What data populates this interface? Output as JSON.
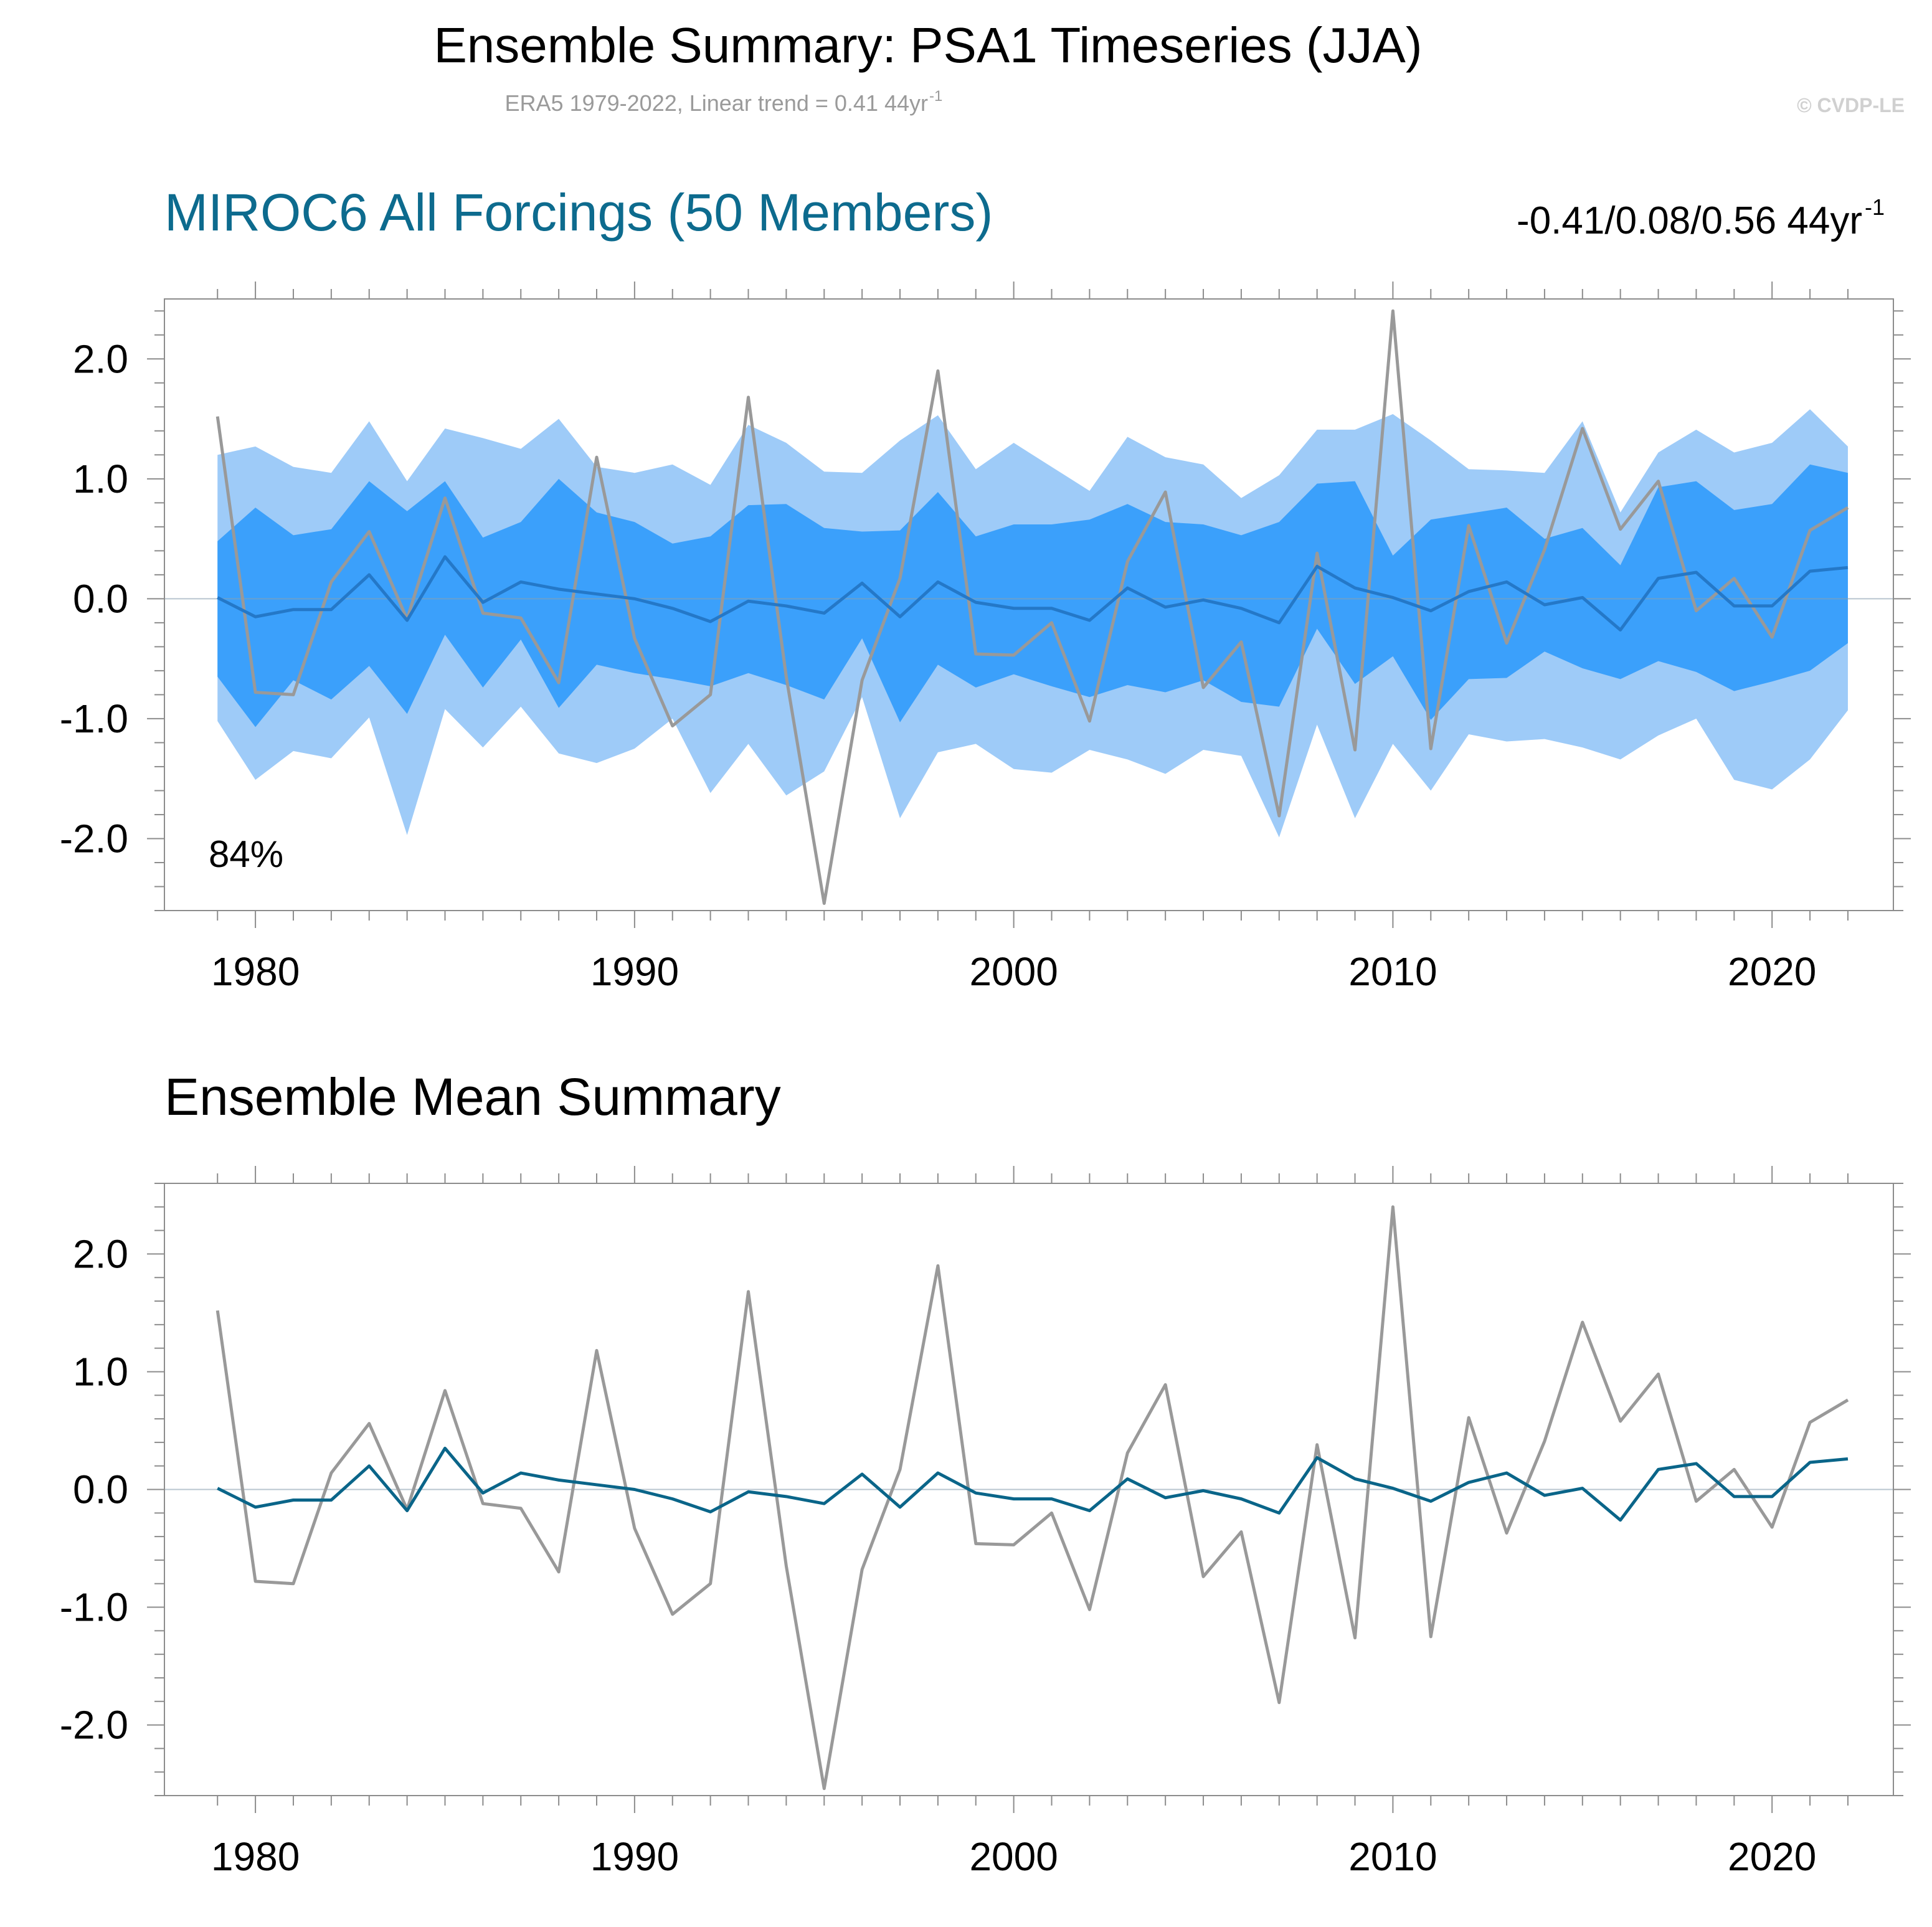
{
  "title": "Ensemble Summary: PSA1 Timeseries (JJA)",
  "subtitle_main": "ERA5 1979-2022, Linear trend = 0.41 44yr",
  "subtitle_sup": "-1",
  "copyright": "© CVDP-LE",
  "colors": {
    "outer_band": "#9ecbf8",
    "inner_band": "#3ba0fb",
    "ens_mean_top": "#2478c8",
    "ens_mean_bottom": "#0a6589",
    "obs": "#999999",
    "title_blue": "#0d6b8e"
  },
  "chart_data": [
    {
      "type": "area",
      "title": "MIROC6 All Forcings (50 Members)",
      "trend_label": "-0.41/0.08/0.56 44yr",
      "trend_sup": "-1",
      "annotation": "84%",
      "ylim": [
        -2.6,
        2.5
      ],
      "xlim": [
        1979,
        2022
      ],
      "yticks": [
        "2.0",
        "1.0",
        "0.0",
        "-1.0",
        "-2.0"
      ],
      "ytick_values": [
        2,
        1,
        0,
        -1,
        -2
      ],
      "xticks": [
        "1980",
        "1990",
        "2000",
        "2010",
        "2020"
      ],
      "xtick_values": [
        1980,
        1990,
        2000,
        2010,
        2020
      ],
      "x": [
        1979,
        1980,
        1981,
        1982,
        1983,
        1984,
        1985,
        1986,
        1987,
        1988,
        1989,
        1990,
        1991,
        1992,
        1993,
        1994,
        1995,
        1996,
        1997,
        1998,
        1999,
        2000,
        2001,
        2002,
        2003,
        2004,
        2005,
        2006,
        2007,
        2008,
        2009,
        2010,
        2011,
        2012,
        2013,
        2014,
        2015,
        2016,
        2017,
        2018,
        2019,
        2020,
        2021,
        2022
      ],
      "series": [
        {
          "name": "",
          "role": "outer_upper",
          "values": [
            1.2,
            1.27,
            1.1,
            1.05,
            1.48,
            0.98,
            1.42,
            1.34,
            1.25,
            1.5,
            1.1,
            1.05,
            1.12,
            0.95,
            1.45,
            1.3,
            1.06,
            1.05,
            1.32,
            1.53,
            1.08,
            1.3,
            1.1,
            0.9,
            1.35,
            1.18,
            1.12,
            0.84,
            1.03,
            1.41,
            1.41,
            1.54,
            1.32,
            1.08,
            1.07,
            1.05,
            1.48,
            0.72,
            1.22,
            1.41,
            1.22,
            1.3,
            1.58,
            1.27
          ]
        },
        {
          "name": "",
          "role": "outer_lower",
          "values": [
            -1.02,
            -1.51,
            -1.27,
            -1.33,
            -0.99,
            -1.97,
            -0.92,
            -1.24,
            -0.9,
            -1.29,
            -1.37,
            -1.25,
            -1.0,
            -1.62,
            -1.21,
            -1.64,
            -1.44,
            -0.82,
            -1.83,
            -1.28,
            -1.21,
            -1.42,
            -1.45,
            -1.26,
            -1.34,
            -1.46,
            -1.26,
            -1.31,
            -1.99,
            -1.05,
            -1.83,
            -1.21,
            -1.6,
            -1.13,
            -1.19,
            -1.17,
            -1.24,
            -1.34,
            -1.14,
            -1.0,
            -1.51,
            -1.59,
            -1.34,
            -0.93
          ]
        },
        {
          "name": "",
          "role": "inner_upper",
          "values": [
            0.48,
            0.76,
            0.53,
            0.58,
            0.98,
            0.73,
            0.98,
            0.51,
            0.64,
            1.0,
            0.72,
            0.64,
            0.46,
            0.52,
            0.78,
            0.79,
            0.59,
            0.56,
            0.57,
            0.89,
            0.52,
            0.62,
            0.62,
            0.66,
            0.79,
            0.64,
            0.62,
            0.53,
            0.64,
            0.96,
            0.98,
            0.36,
            0.66,
            0.71,
            0.76,
            0.5,
            0.59,
            0.28,
            0.93,
            0.98,
            0.74,
            0.79,
            1.12,
            1.05
          ]
        },
        {
          "name": "",
          "role": "inner_lower",
          "values": [
            -0.65,
            -1.07,
            -0.68,
            -0.84,
            -0.56,
            -0.96,
            -0.3,
            -0.74,
            -0.34,
            -0.91,
            -0.55,
            -0.62,
            -0.67,
            -0.73,
            -0.62,
            -0.72,
            -0.84,
            -0.33,
            -1.03,
            -0.55,
            -0.74,
            -0.63,
            -0.73,
            -0.82,
            -0.72,
            -0.78,
            -0.68,
            -0.86,
            -0.9,
            -0.25,
            -0.71,
            -0.48,
            -1.01,
            -0.67,
            -0.66,
            -0.44,
            -0.58,
            -0.67,
            -0.52,
            -0.61,
            -0.77,
            -0.69,
            -0.6,
            -0.37
          ]
        },
        {
          "name": "",
          "role": "ens_mean",
          "values": [
            0.01,
            -0.15,
            -0.09,
            -0.09,
            0.2,
            -0.18,
            0.35,
            -0.03,
            0.14,
            0.08,
            0.04,
            0.0,
            -0.08,
            -0.19,
            -0.02,
            -0.06,
            -0.12,
            0.13,
            -0.15,
            0.14,
            -0.03,
            -0.08,
            -0.08,
            -0.18,
            0.09,
            -0.07,
            -0.01,
            -0.08,
            -0.2,
            0.27,
            0.09,
            0.01,
            -0.1,
            0.06,
            0.14,
            -0.05,
            0.01,
            -0.26,
            0.17,
            0.22,
            -0.06,
            -0.06,
            0.23,
            0.26
          ]
        },
        {
          "name": "",
          "role": "obs",
          "values": [
            1.52,
            -0.78,
            -0.8,
            0.14,
            0.56,
            -0.17,
            0.84,
            -0.12,
            -0.16,
            -0.7,
            1.18,
            -0.33,
            -1.06,
            -0.8,
            1.68,
            -0.65,
            -2.54,
            -0.68,
            0.17,
            1.9,
            -0.46,
            -0.47,
            -0.2,
            -1.02,
            0.31,
            0.89,
            -0.74,
            -0.36,
            -1.81,
            0.38,
            -1.26,
            2.4,
            -1.25,
            0.61,
            -0.37,
            0.41,
            1.42,
            0.58,
            0.98,
            -0.1,
            0.17,
            -0.32,
            0.57,
            0.76
          ]
        }
      ]
    },
    {
      "type": "line",
      "title": "Ensemble Mean Summary",
      "ylim": [
        -2.6,
        2.6
      ],
      "xlim": [
        1979,
        2022
      ],
      "yticks": [
        "2.0",
        "1.0",
        "0.0",
        "-1.0",
        "-2.0"
      ],
      "ytick_values": [
        2,
        1,
        0,
        -1,
        -2
      ],
      "xticks": [
        "1980",
        "1990",
        "2000",
        "2010",
        "2020"
      ],
      "xtick_values": [
        1980,
        1990,
        2000,
        2010,
        2020
      ],
      "x": [
        1979,
        1980,
        1981,
        1982,
        1983,
        1984,
        1985,
        1986,
        1987,
        1988,
        1989,
        1990,
        1991,
        1992,
        1993,
        1994,
        1995,
        1996,
        1997,
        1998,
        1999,
        2000,
        2001,
        2002,
        2003,
        2004,
        2005,
        2006,
        2007,
        2008,
        2009,
        2010,
        2011,
        2012,
        2013,
        2014,
        2015,
        2016,
        2017,
        2018,
        2019,
        2020,
        2021,
        2022
      ],
      "series": [
        {
          "name": "",
          "role": "ens_mean",
          "values": [
            0.01,
            -0.15,
            -0.09,
            -0.09,
            0.2,
            -0.18,
            0.35,
            -0.03,
            0.14,
            0.08,
            0.04,
            0.0,
            -0.08,
            -0.19,
            -0.02,
            -0.06,
            -0.12,
            0.13,
            -0.15,
            0.14,
            -0.03,
            -0.08,
            -0.08,
            -0.18,
            0.09,
            -0.07,
            -0.01,
            -0.08,
            -0.2,
            0.27,
            0.09,
            0.01,
            -0.1,
            0.06,
            0.14,
            -0.05,
            0.01,
            -0.26,
            0.17,
            0.22,
            -0.06,
            -0.06,
            0.23,
            0.26
          ]
        },
        {
          "name": "",
          "role": "obs",
          "values": [
            1.52,
            -0.78,
            -0.8,
            0.14,
            0.56,
            -0.17,
            0.84,
            -0.12,
            -0.16,
            -0.7,
            1.18,
            -0.33,
            -1.06,
            -0.8,
            1.68,
            -0.65,
            -2.54,
            -0.68,
            0.17,
            1.9,
            -0.46,
            -0.47,
            -0.2,
            -1.02,
            0.31,
            0.89,
            -0.74,
            -0.36,
            -1.81,
            0.38,
            -1.26,
            2.4,
            -1.25,
            0.61,
            -0.37,
            0.41,
            1.42,
            0.58,
            0.98,
            -0.1,
            0.17,
            -0.32,
            0.57,
            0.76
          ]
        }
      ]
    }
  ]
}
